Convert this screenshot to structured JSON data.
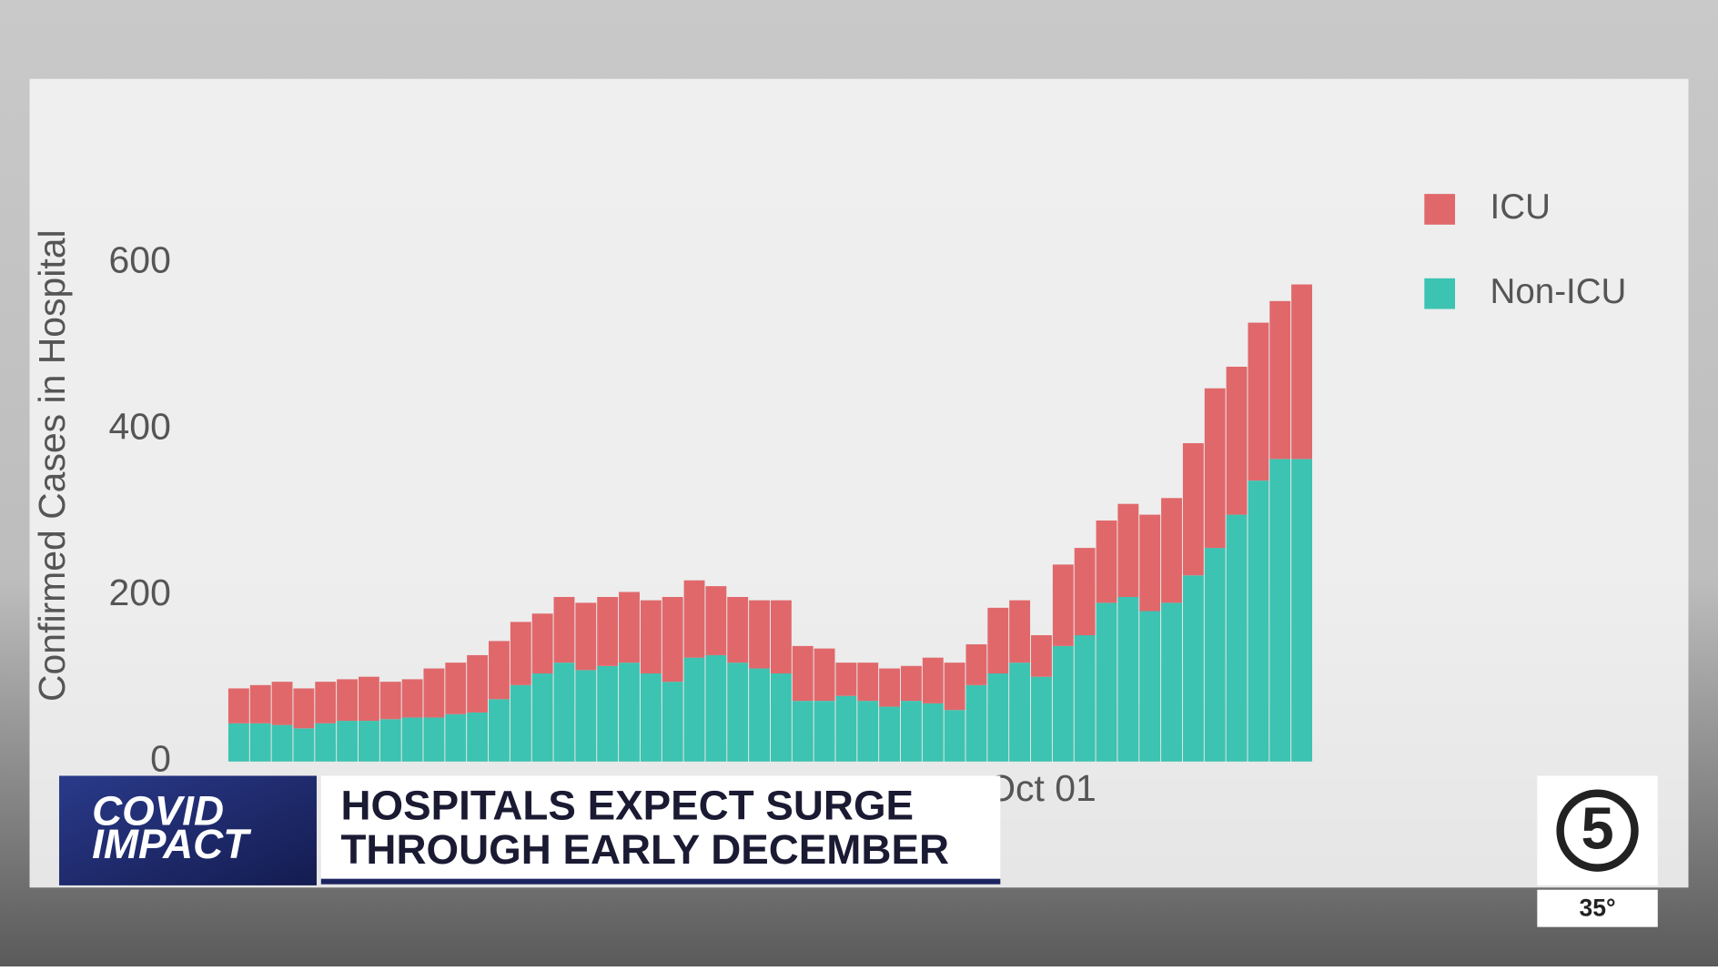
{
  "chart_data": {
    "type": "bar",
    "stacked": true,
    "y_label": "Confirmed Cases in Hospital",
    "categories": [
      null,
      null,
      null,
      null,
      null,
      null,
      null,
      null,
      null,
      null,
      null,
      null,
      null,
      null,
      null,
      null,
      null,
      null,
      null,
      null,
      null,
      null,
      null,
      null,
      null,
      null,
      null,
      null,
      null,
      null,
      null,
      null,
      null,
      null,
      null,
      null,
      null,
      "Oct 01",
      null,
      null,
      null,
      null,
      null,
      null,
      null,
      null,
      null,
      null,
      null,
      null
    ],
    "series": [
      {
        "name": "ICU",
        "color": "#e0686b",
        "values": [
          42,
          46,
          52,
          48,
          50,
          50,
          53,
          45,
          46,
          59,
          62,
          69,
          70,
          76,
          72,
          79,
          81,
          83,
          85,
          88,
          102,
          93,
          83,
          79,
          82,
          88,
          66,
          63,
          40,
          46,
          46,
          42,
          55,
          57,
          49,
          79,
          75,
          50,
          98,
          105,
          99,
          112,
          116,
          126,
          159,
          192,
          178,
          190,
          190,
          210
        ]
      },
      {
        "name": "Non-ICU",
        "color": "#3dc3b1",
        "values": [
          46,
          46,
          44,
          40,
          46,
          49,
          49,
          51,
          53,
          53,
          57,
          59,
          75,
          92,
          106,
          119,
          110,
          115,
          119,
          106,
          96,
          125,
          128,
          119,
          112,
          106,
          73,
          73,
          79,
          73,
          66,
          73,
          70,
          62,
          92,
          106,
          119,
          102,
          139,
          152,
          191,
          198,
          181,
          191,
          224,
          257,
          297,
          338,
          364,
          364
        ]
      }
    ],
    "ylim": [
      0,
      700
    ],
    "yticks": [
      0,
      200,
      400,
      600
    ],
    "grid": false,
    "legend": "top-right"
  },
  "banner": {
    "show_top": "COVID",
    "show_bottom": "IMPACT",
    "headline_1": "HOSPITALS EXPECT SURGE",
    "headline_2": "THROUGH EARLY DECEMBER",
    "channel": "5",
    "temperature": "35°"
  }
}
